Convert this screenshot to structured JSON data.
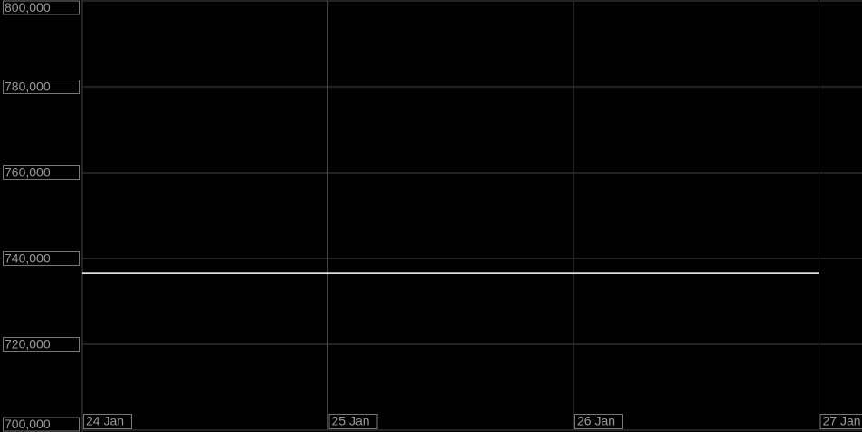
{
  "chart_data": {
    "type": "line",
    "categories": [
      "24 Jan",
      "25 Jan",
      "26 Jan",
      "27 Jan"
    ],
    "series": [
      {
        "color": "#ffffff",
        "values": [
          736600,
          736600,
          736600,
          736600
        ]
      }
    ],
    "ylim": [
      700000,
      800000
    ],
    "yticks": [
      {
        "value": 700000,
        "label": "700,000"
      },
      {
        "value": 720000,
        "label": "720,000"
      },
      {
        "value": 740000,
        "label": "740,000"
      },
      {
        "value": 760000,
        "label": "760,000"
      },
      {
        "value": 780000,
        "label": "780,000"
      },
      {
        "value": 800000,
        "label": "800,000"
      }
    ],
    "grid": true
  }
}
